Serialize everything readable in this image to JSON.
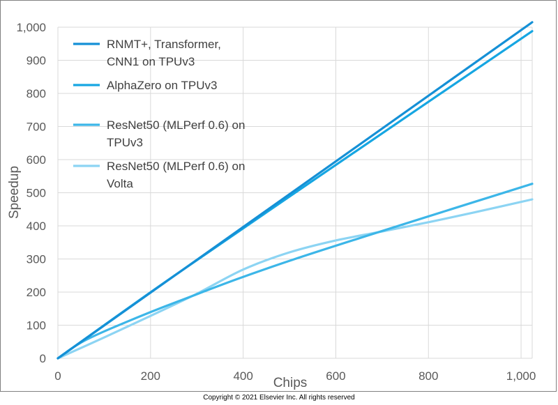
{
  "chart_data": {
    "type": "line",
    "xlabel": "Chips",
    "ylabel": "Speedup",
    "xlim": [
      0,
      1024
    ],
    "ylim": [
      0,
      1000
    ],
    "xticks": [
      "0",
      "200",
      "400",
      "600",
      "800",
      "1,000"
    ],
    "xtick_values": [
      0,
      200,
      400,
      600,
      800,
      1000
    ],
    "yticks": [
      "0",
      "100",
      "200",
      "300",
      "400",
      "500",
      "600",
      "700",
      "800",
      "900",
      "1,000"
    ],
    "ytick_values": [
      0,
      100,
      200,
      300,
      400,
      500,
      600,
      700,
      800,
      900,
      1000
    ],
    "grid": true,
    "legend_position": "top-left",
    "series": [
      {
        "name": "RNMT+, Transformer, CNN1 on TPUv3",
        "name_lines": [
          "RNMT+, Transformer,",
          "CNN1 on TPUv3"
        ],
        "color": "#1590d6",
        "x": [
          0,
          1024
        ],
        "y": [
          0,
          1015
        ]
      },
      {
        "name": "AlphaZero on TPUv3",
        "name_lines": [
          "AlphaZero on TPUv3"
        ],
        "color": "#16a6e2",
        "x": [
          0,
          16,
          32,
          64,
          128,
          256,
          512,
          1024
        ],
        "y": [
          0,
          16,
          32,
          64,
          128,
          254,
          500,
          988
        ]
      },
      {
        "name": "ResNet50 (MLPerf 0.6) on TPUv3",
        "name_lines": [
          "ResNet50 (MLPerf 0.6) on",
          "TPUv3"
        ],
        "color": "#3cb6e8",
        "x": [
          0,
          16,
          32,
          64,
          128,
          256,
          512,
          1024
        ],
        "y": [
          0,
          16,
          32,
          58,
          98,
          170,
          300,
          527
        ]
      },
      {
        "name": "ResNet50 (MLPerf 0.6) on Volta",
        "name_lines": [
          "ResNet50 (MLPerf 0.6) on",
          "Volta"
        ],
        "color": "#8cd4f3",
        "x": [
          0,
          100,
          200,
          300,
          400,
          500,
          600,
          700,
          800,
          900,
          1024
        ],
        "y": [
          0,
          63,
          128,
          195,
          268,
          320,
          356,
          383,
          411,
          441,
          480
        ]
      }
    ]
  },
  "footer": {
    "copyright": "Copyright © 2021 Elsevier Inc. All rights reserved"
  }
}
